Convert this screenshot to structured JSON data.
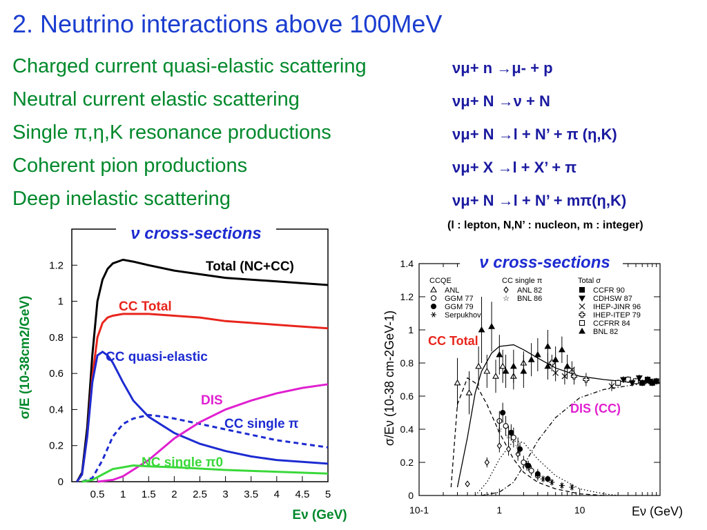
{
  "title": "2. Neutrino interactions above 100MeV",
  "processes": [
    "Charged current quasi-elastic scattering",
    "Neutral current elastic scattering",
    "Single π,η,K resonance productions",
    "Coherent pion productions",
    "Deep inelastic scattering"
  ],
  "reactions": [
    "νμ+ n →μ- + p",
    "νμ+ N →ν + N",
    "νμ+ N →l + N’ + π (η,K)",
    "νμ+ X →l + X’ + π",
    "νμ+ N →l + N’ + mπ(η,K)"
  ],
  "note": "(l : lepton, N,N’ : nucleon, m : integer)",
  "colors": {
    "title": "#1a3ccf",
    "process": "#00882b",
    "reaction": "#1a1aa0",
    "ccqe": "#1d2bd1",
    "cctotal": "#e8251c",
    "dis": "#e020d0",
    "nc": "#3ad83a"
  },
  "chart_data": [
    {
      "type": "line",
      "title": "ν cross-sections",
      "xlabel": "Eν (GeV)",
      "ylabel": "σ/E (10-38cm2/GeV)",
      "xlim": [
        0,
        5
      ],
      "ylim": [
        0,
        1.4
      ],
      "xticks": [
        "0.5",
        "1",
        "1.5",
        "2",
        "2.5",
        "3",
        "3.5",
        "4",
        "4.5",
        "5"
      ],
      "yticks": [
        "0",
        "0.2",
        "0.4",
        "0.6",
        "0.8",
        "1",
        "1.2"
      ],
      "series": [
        {
          "name": "Total (NC+CC)",
          "color": "#000000",
          "style": "solid",
          "x": [
            0.1,
            0.2,
            0.3,
            0.4,
            0.5,
            0.6,
            0.7,
            0.8,
            1.0,
            1.2,
            1.5,
            2.0,
            2.5,
            3.0,
            3.5,
            4.0,
            4.5,
            5.0
          ],
          "y": [
            0.0,
            0.05,
            0.3,
            0.7,
            1.0,
            1.12,
            1.18,
            1.21,
            1.23,
            1.22,
            1.2,
            1.17,
            1.15,
            1.13,
            1.12,
            1.11,
            1.1,
            1.09
          ]
        },
        {
          "name": "CC Total",
          "color": "#e8251c",
          "style": "solid",
          "x": [
            0.1,
            0.2,
            0.3,
            0.4,
            0.5,
            0.6,
            0.7,
            0.8,
            1.0,
            1.2,
            1.5,
            2.0,
            2.5,
            3.0,
            3.5,
            4.0,
            4.5,
            5.0
          ],
          "y": [
            0.0,
            0.04,
            0.25,
            0.58,
            0.8,
            0.88,
            0.91,
            0.92,
            0.93,
            0.93,
            0.93,
            0.92,
            0.91,
            0.89,
            0.88,
            0.87,
            0.86,
            0.85
          ]
        },
        {
          "name": "CC quasi-elastic",
          "color": "#1d2bd1",
          "style": "solid",
          "x": [
            0.1,
            0.2,
            0.3,
            0.4,
            0.5,
            0.6,
            0.7,
            0.8,
            1.0,
            1.2,
            1.5,
            2.0,
            2.5,
            3.0,
            3.5,
            4.0,
            4.5,
            5.0
          ],
          "y": [
            0.0,
            0.04,
            0.25,
            0.55,
            0.7,
            0.72,
            0.7,
            0.66,
            0.55,
            0.45,
            0.36,
            0.27,
            0.21,
            0.17,
            0.14,
            0.12,
            0.11,
            0.1
          ]
        },
        {
          "name": "CC single π",
          "color": "#1d2bd1",
          "style": "dashed",
          "x": [
            0.2,
            0.4,
            0.6,
            0.8,
            1.0,
            1.2,
            1.5,
            1.8,
            2.0,
            2.5,
            3.0,
            3.5,
            4.0,
            4.5,
            5.0
          ],
          "y": [
            0.0,
            0.02,
            0.12,
            0.25,
            0.32,
            0.35,
            0.37,
            0.36,
            0.35,
            0.32,
            0.29,
            0.26,
            0.23,
            0.21,
            0.19
          ]
        },
        {
          "name": "DIS",
          "color": "#e020d0",
          "style": "solid",
          "x": [
            0.5,
            0.8,
            1.0,
            1.5,
            2.0,
            2.5,
            3.0,
            3.5,
            4.0,
            4.5,
            5.0
          ],
          "y": [
            0.0,
            0.01,
            0.03,
            0.12,
            0.24,
            0.33,
            0.4,
            0.45,
            0.49,
            0.52,
            0.54
          ]
        },
        {
          "name": "NC single π0",
          "color": "#3ad83a",
          "style": "solid",
          "x": [
            0.2,
            0.4,
            0.6,
            0.8,
            1.0,
            1.2,
            1.5,
            2.0,
            3.0,
            4.0,
            5.0
          ],
          "y": [
            0.0,
            0.01,
            0.04,
            0.07,
            0.08,
            0.09,
            0.085,
            0.08,
            0.065,
            0.055,
            0.045
          ]
        }
      ]
    },
    {
      "type": "scatter",
      "title": "ν cross-sections",
      "xlabel": "Eν (GeV)",
      "ylabel": "σ/Eν (10-38 cm-2GeV-1)",
      "xscale": "log",
      "xlim": [
        0.1,
        100
      ],
      "ylim": [
        0,
        1.4
      ],
      "xticks": [
        "10-1",
        "1",
        "10"
      ],
      "yticks": [
        "0",
        "0.2",
        "0.4",
        "0.6",
        "0.8",
        "1",
        "1.2",
        "1.4"
      ],
      "legend": {
        "groups": [
          {
            "title": "CCQE",
            "items": [
              "ANL",
              "GGM 77",
              "GGM 79",
              "Serpukhov"
            ]
          },
          {
            "title": "CC single π",
            "items": [
              "ANL 82",
              "BNL 86"
            ]
          },
          {
            "title": "Total σ",
            "items": [
              "CCFR 90",
              "CDHSW 87",
              "IHEP-JINR 96",
              "IHEP-ITEP 79",
              "CCFRR 84",
              "BNL 82"
            ]
          }
        ]
      },
      "labels": [
        "CC Total",
        "DIS (CC)"
      ],
      "series": [
        {
          "name": "CC Total",
          "style": "solid",
          "x": [
            0.3,
            0.4,
            0.5,
            0.6,
            0.8,
            1.0,
            1.5,
            2.0,
            3.0,
            5.0,
            10,
            20,
            50,
            100
          ],
          "y": [
            0.05,
            0.35,
            0.62,
            0.75,
            0.86,
            0.9,
            0.91,
            0.88,
            0.83,
            0.77,
            0.72,
            0.7,
            0.68,
            0.68
          ]
        },
        {
          "name": "CCQE",
          "style": "dashed",
          "x": [
            0.25,
            0.3,
            0.4,
            0.5,
            0.7,
            1.0,
            1.5,
            2.0,
            3.0,
            5.0,
            10,
            20
          ],
          "y": [
            0.05,
            0.55,
            0.71,
            0.68,
            0.55,
            0.38,
            0.22,
            0.14,
            0.08,
            0.04,
            0.01,
            0.0
          ]
        },
        {
          "name": "CC single π",
          "style": "dotted",
          "x": [
            0.5,
            0.7,
            1.0,
            1.5,
            2.0,
            3.0,
            5.0,
            10,
            20,
            30
          ],
          "y": [
            0.0,
            0.08,
            0.22,
            0.33,
            0.32,
            0.22,
            0.12,
            0.04,
            0.01,
            0.0
          ]
        },
        {
          "name": "DIS (CC)",
          "style": "dashdot",
          "x": [
            0.6,
            1.0,
            1.5,
            2.0,
            3.0,
            5.0,
            10,
            20,
            50,
            100
          ],
          "y": [
            0.0,
            0.02,
            0.08,
            0.18,
            0.33,
            0.47,
            0.59,
            0.64,
            0.67,
            0.68
          ]
        }
      ],
      "points": [
        {
          "x": 0.3,
          "y": 0.68,
          "e": 0.15,
          "m": "tri-open"
        },
        {
          "x": 0.42,
          "y": 0.62,
          "e": 0.13,
          "m": "tri-open"
        },
        {
          "x": 0.55,
          "y": 0.78,
          "e": 0.12,
          "m": "tri-open"
        },
        {
          "x": 0.7,
          "y": 0.75,
          "e": 0.1,
          "m": "tri-open"
        },
        {
          "x": 0.9,
          "y": 0.72,
          "e": 0.1,
          "m": "tri-open"
        },
        {
          "x": 1.1,
          "y": 0.78,
          "e": 0.1,
          "m": "tri-open"
        },
        {
          "x": 1.5,
          "y": 0.72,
          "e": 0.08,
          "m": "tri-open"
        },
        {
          "x": 2.0,
          "y": 0.8,
          "e": 0.07,
          "m": "tri-open"
        },
        {
          "x": 0.6,
          "y": 1.0,
          "e": 0.2,
          "m": "tri-fill"
        },
        {
          "x": 0.8,
          "y": 1.02,
          "e": 0.15,
          "m": "tri-fill"
        },
        {
          "x": 1.0,
          "y": 0.85,
          "e": 0.12,
          "m": "tri-fill"
        },
        {
          "x": 1.2,
          "y": 0.75,
          "e": 0.1,
          "m": "tri-fill"
        },
        {
          "x": 1.5,
          "y": 0.78,
          "e": 0.1,
          "m": "tri-fill"
        },
        {
          "x": 2.0,
          "y": 0.75,
          "e": 0.1,
          "m": "tri-fill"
        },
        {
          "x": 2.5,
          "y": 0.82,
          "e": 0.1,
          "m": "tri-fill"
        },
        {
          "x": 3.0,
          "y": 0.85,
          "e": 0.1,
          "m": "tri-fill"
        },
        {
          "x": 4.0,
          "y": 0.78,
          "e": 0.08,
          "m": "tri-fill"
        },
        {
          "x": 5.0,
          "y": 0.82,
          "e": 0.08,
          "m": "tri-fill"
        },
        {
          "x": 7.0,
          "y": 0.78,
          "e": 0.07,
          "m": "tri-fill"
        },
        {
          "x": 4.0,
          "y": 0.9,
          "e": 0.1,
          "m": "tri-fill"
        },
        {
          "x": 6.0,
          "y": 0.88,
          "e": 0.08,
          "m": "tri-fill"
        },
        {
          "x": 5.0,
          "y": 0.74,
          "e": 0.05,
          "m": "cross"
        },
        {
          "x": 6.5,
          "y": 0.72,
          "e": 0.05,
          "m": "cross"
        },
        {
          "x": 8.0,
          "y": 0.76,
          "e": 0.05,
          "m": "cross"
        },
        {
          "x": 25,
          "y": 0.66,
          "e": 0.03,
          "m": "cross"
        },
        {
          "x": 4.5,
          "y": 0.8,
          "e": 0.05,
          "m": "plus-open"
        },
        {
          "x": 8.5,
          "y": 0.72,
          "e": 0.05,
          "m": "plus-open"
        },
        {
          "x": 12,
          "y": 0.7,
          "e": 0.04,
          "m": "plus-open"
        },
        {
          "x": 30,
          "y": 0.68,
          "e": 0.02,
          "m": "sq-open"
        },
        {
          "x": 40,
          "y": 0.7,
          "e": 0.02,
          "m": "sq-open"
        },
        {
          "x": 50,
          "y": 0.69,
          "e": 0.02,
          "m": "sq-open"
        },
        {
          "x": 60,
          "y": 0.68,
          "e": 0.02,
          "m": "sq-fill"
        },
        {
          "x": 70,
          "y": 0.7,
          "e": 0.02,
          "m": "sq-fill"
        },
        {
          "x": 80,
          "y": 0.68,
          "e": 0.02,
          "m": "sq-fill"
        },
        {
          "x": 90,
          "y": 0.69,
          "e": 0.02,
          "m": "sq-fill"
        },
        {
          "x": 35,
          "y": 0.7,
          "e": 0.02,
          "m": "tri-down"
        },
        {
          "x": 45,
          "y": 0.68,
          "e": 0.02,
          "m": "tri-down"
        },
        {
          "x": 55,
          "y": 0.71,
          "e": 0.02,
          "m": "tri-down"
        },
        {
          "x": 75,
          "y": 0.69,
          "e": 0.02,
          "m": "tri-down"
        },
        {
          "x": 0.4,
          "y": 0.07,
          "e": 0.0,
          "m": "diamond"
        },
        {
          "x": 0.7,
          "y": 0.2,
          "e": 0.03,
          "m": "diamond"
        },
        {
          "x": 1.0,
          "y": 0.3,
          "e": 0.04,
          "m": "diamond"
        },
        {
          "x": 1.3,
          "y": 0.28,
          "e": 0.04,
          "m": "diamond"
        },
        {
          "x": 1.7,
          "y": 0.25,
          "e": 0.04,
          "m": "diamond"
        },
        {
          "x": 2.2,
          "y": 0.18,
          "e": 0.03,
          "m": "diamond"
        },
        {
          "x": 1.0,
          "y": 0.45,
          "e": 0.06,
          "m": "circle-open"
        },
        {
          "x": 1.2,
          "y": 0.42,
          "e": 0.06,
          "m": "circle-open"
        },
        {
          "x": 1.5,
          "y": 0.35,
          "e": 0.06,
          "m": "circle-open"
        },
        {
          "x": 2.0,
          "y": 0.2,
          "e": 0.04,
          "m": "circle-open"
        },
        {
          "x": 2.5,
          "y": 0.15,
          "e": 0.03,
          "m": "circle-open"
        },
        {
          "x": 3.0,
          "y": 0.12,
          "e": 0.03,
          "m": "circle-open"
        },
        {
          "x": 1.1,
          "y": 0.5,
          "e": 0.06,
          "m": "circle-fill"
        },
        {
          "x": 1.4,
          "y": 0.38,
          "e": 0.05,
          "m": "circle-fill"
        },
        {
          "x": 1.8,
          "y": 0.28,
          "e": 0.04,
          "m": "circle-fill"
        },
        {
          "x": 2.3,
          "y": 0.18,
          "e": 0.03,
          "m": "circle-fill"
        },
        {
          "x": 3.0,
          "y": 0.13,
          "e": 0.03,
          "m": "circle-fill"
        },
        {
          "x": 4.0,
          "y": 0.1,
          "e": 0.02,
          "m": "circle-fill"
        },
        {
          "x": 3.5,
          "y": 0.1,
          "e": 0.02,
          "m": "star6"
        },
        {
          "x": 4.5,
          "y": 0.08,
          "e": 0.02,
          "m": "star6"
        },
        {
          "x": 6.0,
          "y": 0.06,
          "e": 0.02,
          "m": "star6"
        },
        {
          "x": 8.0,
          "y": 0.05,
          "e": 0.02,
          "m": "star6"
        },
        {
          "x": 1.0,
          "y": 0.4,
          "e": 0.06,
          "m": "star5"
        },
        {
          "x": 1.3,
          "y": 0.36,
          "e": 0.06,
          "m": "star5"
        },
        {
          "x": 1.7,
          "y": 0.3,
          "e": 0.05,
          "m": "star5"
        }
      ]
    }
  ]
}
